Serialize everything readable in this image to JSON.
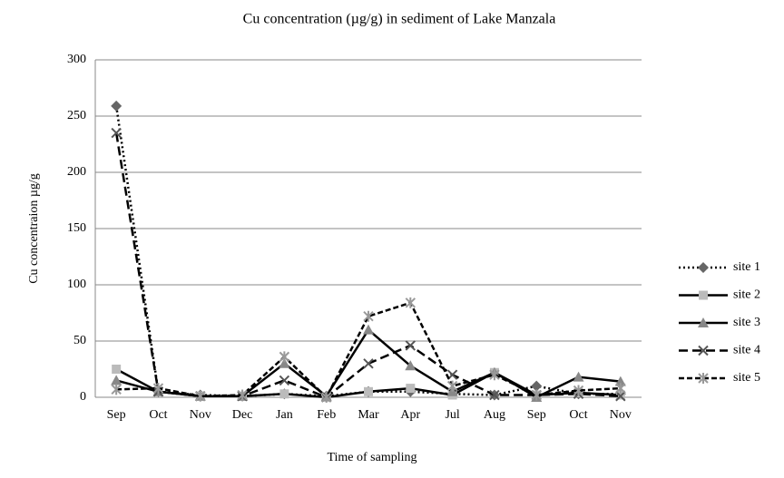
{
  "chart_data": {
    "type": "line",
    "title": "Cu concentration (µg/g) in sediment of Lake Manzala",
    "x_label": "Time of sampling",
    "y_label": "Cu concentraion  µg/g",
    "categories": [
      "Sep",
      "Oct",
      "Nov",
      "Dec",
      "Jan",
      "Feb",
      "Mar",
      "Apr",
      "Jul",
      "Aug",
      "Sep",
      "Oct",
      "Nov"
    ],
    "ylim": [
      0,
      300
    ],
    "yticks": [
      0,
      50,
      100,
      150,
      200,
      250,
      300
    ],
    "grid": true,
    "legend": "right",
    "series": [
      {
        "name": "site 1",
        "color": "#666666",
        "dash": "dotted",
        "marker": "diamond",
        "values": [
          259,
          5,
          2,
          1,
          3,
          1,
          5,
          5,
          3,
          2,
          10,
          3,
          3
        ]
      },
      {
        "name": "site 2",
        "color": "#bbbbbb",
        "dash": "solid",
        "marker": "square",
        "values": [
          25,
          5,
          1,
          1,
          3,
          0,
          5,
          8,
          2,
          22,
          2,
          4,
          2
        ]
      },
      {
        "name": "site 3",
        "color": "#888888",
        "dash": "solid",
        "marker": "triangle",
        "values": [
          15,
          5,
          1,
          1,
          30,
          1,
          60,
          28,
          5,
          22,
          0,
          18,
          14
        ]
      },
      {
        "name": "site 4",
        "color": "#555555",
        "dash": "longdash",
        "marker": "x",
        "values": [
          235,
          5,
          1,
          1,
          15,
          0,
          30,
          46,
          20,
          2,
          2,
          3,
          1
        ]
      },
      {
        "name": "site 5",
        "color": "#999999",
        "dash": "dashed",
        "marker": "star",
        "values": [
          7,
          8,
          1,
          2,
          36,
          0,
          72,
          84,
          10,
          20,
          2,
          6,
          8
        ]
      }
    ]
  }
}
